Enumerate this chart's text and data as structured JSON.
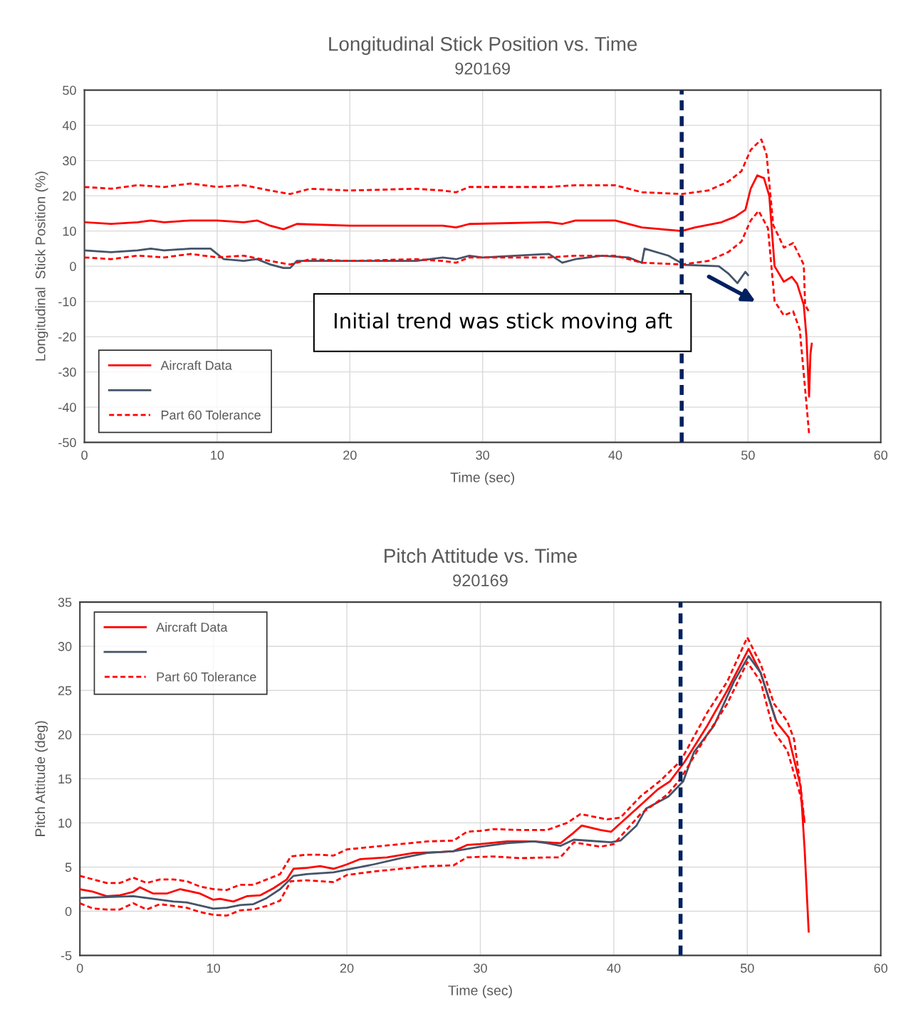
{
  "chart_data": [
    {
      "type": "line",
      "title": "Longitudinal Stick Position vs. Time",
      "subtitle": "920169",
      "xlabel": "Time (sec)",
      "ylabel": "Longitudinal  Stick Position (%)",
      "xlim": [
        0,
        60
      ],
      "xticks": [
        0,
        10,
        20,
        30,
        40,
        50,
        60
      ],
      "ylim": [
        -50,
        50
      ],
      "yticks": [
        -50,
        -40,
        -30,
        -20,
        -10,
        0,
        10,
        20,
        30,
        40,
        50
      ],
      "grid": true,
      "legend": "bottom left",
      "annotations": [
        "Initial trend was stick moving aft"
      ],
      "ref_lines": [
        {
          "axis": "x",
          "value": 45,
          "color": "#002060",
          "line_style": "dashed"
        }
      ],
      "series": [
        {
          "name": "Aircraft Data",
          "color": "#ff0000",
          "line_style": "solid",
          "x": [
            0,
            2,
            4,
            5,
            6,
            8,
            10,
            12,
            13,
            14,
            15,
            16,
            20,
            25,
            27,
            28,
            29,
            35,
            36,
            37,
            40,
            42,
            45,
            46,
            48,
            49,
            49.8,
            50.2,
            50.7,
            51.2,
            51.6,
            52.0,
            52.7,
            53.3,
            53.7,
            54.2,
            54.4,
            54.6,
            54.7,
            54.8
          ],
          "values": [
            12.5,
            12,
            12.5,
            13,
            12.5,
            13,
            13,
            12.5,
            13,
            11.5,
            10.5,
            12,
            11.5,
            11.5,
            11.5,
            11,
            12,
            12.5,
            12,
            13,
            13,
            11,
            10,
            11,
            12.5,
            14,
            16,
            22,
            25.8,
            25,
            20,
            0,
            -4.4,
            -3,
            -5,
            -11,
            -20,
            -37,
            -25,
            -22
          ]
        },
        {
          "color": "#44546a",
          "line_style": "solid",
          "x": [
            0,
            2,
            4,
            5,
            6,
            8,
            9.5,
            10,
            10.5,
            12,
            13,
            14,
            15,
            15.5,
            16,
            20,
            25,
            27,
            28,
            29,
            30,
            35,
            36,
            37,
            39,
            41,
            42,
            42.2,
            44,
            45.2,
            47.8,
            48.5,
            49.2,
            49.8,
            50
          ],
          "values": [
            4.5,
            4,
            4.5,
            5,
            4.5,
            5,
            5,
            3.5,
            2,
            1.5,
            2,
            0.5,
            -0.5,
            -0.5,
            1.5,
            1.5,
            1.5,
            2.5,
            2,
            3,
            2.5,
            3.5,
            1,
            2,
            3,
            2.5,
            1,
            5,
            3,
            0.4,
            0,
            -2,
            -4.8,
            -1.6,
            -2.5
          ]
        },
        {
          "name": "Part 60 Tolerance",
          "color": "#ff0000",
          "line_style": "dashed",
          "x": [
            0,
            2,
            4,
            6,
            8,
            10,
            12,
            14,
            15.5,
            17,
            20,
            25,
            27,
            28,
            29,
            35,
            37,
            40,
            42,
            45,
            47,
            48.5,
            49.5,
            50.2,
            51,
            51.4,
            51.9,
            52.7,
            53.4,
            54.2,
            54.3,
            54.6
          ],
          "values": [
            22.5,
            22,
            23,
            22.5,
            23.5,
            22.5,
            23,
            21.5,
            20.5,
            22,
            21.5,
            22,
            21.5,
            21,
            22.5,
            22.5,
            23,
            23,
            21,
            20.5,
            21.5,
            24,
            27,
            33,
            36,
            31.6,
            11.7,
            5.3,
            6.6,
            0.4,
            -11,
            -13
          ]
        },
        {
          "color": "#ff0000",
          "line_style": "dashed",
          "x": [
            0,
            2,
            4,
            6,
            8,
            10,
            12,
            14,
            15.5,
            17,
            20,
            25,
            27,
            28,
            29,
            35,
            37,
            40,
            42,
            45,
            47,
            48.5,
            49.5,
            50.2,
            50.8,
            51.5,
            51.8,
            52.0,
            52.7,
            53.4,
            53.9,
            54.4,
            54.6
          ],
          "values": [
            2.5,
            2,
            3,
            2.5,
            3.5,
            2.5,
            3,
            1.5,
            0.5,
            2,
            1.5,
            2,
            1.5,
            1,
            2.5,
            2.5,
            3,
            3,
            1,
            0.5,
            1.5,
            4,
            7,
            13,
            15.7,
            10.8,
            -1.6,
            -9.9,
            -14,
            -12.8,
            -18,
            -39,
            -47.6
          ]
        }
      ]
    },
    {
      "type": "line",
      "title": "Pitch Attitude vs. Time",
      "subtitle": "920169",
      "xlabel": "Time (sec)",
      "ylabel": "Pitch Attitude (deg)",
      "xlim": [
        0,
        60
      ],
      "xticks": [
        0,
        10,
        20,
        30,
        40,
        50,
        60
      ],
      "ylim": [
        -5,
        35
      ],
      "yticks": [
        -5,
        0,
        5,
        10,
        15,
        20,
        25,
        30,
        35
      ],
      "grid": true,
      "legend": "top left",
      "ref_lines": [
        {
          "axis": "x",
          "value": 45,
          "color": "#002060",
          "line_style": "dashed"
        }
      ],
      "series": [
        {
          "name": "Aircraft Data",
          "color": "#ff0000",
          "line_style": "solid",
          "x": [
            0,
            1,
            2,
            3,
            4,
            4.5,
            5.5,
            6.5,
            7.5,
            9,
            10,
            10.5,
            11.5,
            12.5,
            13.5,
            14.5,
            15.5,
            16,
            17,
            18,
            19,
            20,
            21,
            23,
            25,
            27,
            28,
            29,
            30,
            32,
            34,
            36,
            37,
            37.6,
            39,
            39.8,
            42,
            43.3,
            44.2,
            45.3,
            47,
            48.5,
            50.1,
            51,
            52.2,
            53.1,
            54.0,
            54.3,
            54.6
          ],
          "values": [
            2.5,
            2.2,
            1.7,
            1.8,
            2.2,
            2.7,
            2,
            2,
            2.5,
            2,
            1.3,
            1.4,
            1.1,
            1.7,
            1.8,
            2.6,
            3.6,
            4.8,
            4.9,
            5.1,
            4.8,
            5.3,
            5.9,
            6.1,
            6.6,
            6.7,
            6.8,
            7.5,
            7.6,
            7.9,
            7.9,
            7.7,
            8.9,
            9.7,
            9.2,
            9,
            12,
            13.8,
            14.7,
            16.9,
            21,
            25,
            29.7,
            27,
            21.4,
            19.7,
            14.1,
            6.9,
            -2.3
          ]
        },
        {
          "color": "#44546a",
          "line_style": "solid",
          "x": [
            0,
            2,
            4,
            5,
            7,
            8,
            10,
            11,
            12,
            13,
            14,
            15,
            16,
            17,
            19,
            20,
            22,
            24,
            26,
            28,
            30,
            32,
            34,
            35,
            36,
            37,
            38,
            39.8,
            40.5,
            41.7,
            42.4,
            44.1,
            45.2,
            46,
            47.5,
            49,
            50.1,
            51,
            52.1
          ],
          "values": [
            1.5,
            1.6,
            1.7,
            1.5,
            1.1,
            1.0,
            0.3,
            0.4,
            0.7,
            0.8,
            1.5,
            2.5,
            4,
            4.2,
            4.4,
            4.7,
            5.3,
            6.0,
            6.6,
            6.8,
            7.3,
            7.7,
            7.9,
            7.7,
            7.4,
            8.1,
            8.0,
            7.8,
            8.0,
            9.7,
            11.6,
            13,
            14.7,
            18,
            21,
            26,
            28.9,
            27,
            21.8
          ]
        },
        {
          "name": "Part 60 Tolerance",
          "color": "#ff0000",
          "line_style": "dashed",
          "x": [
            0,
            1,
            2,
            3,
            4,
            5,
            6,
            7,
            8,
            9,
            10,
            11,
            12,
            13,
            14,
            15,
            15.8,
            17,
            18,
            19,
            20,
            22,
            24,
            26,
            28,
            29,
            30,
            31,
            33,
            35,
            36.5,
            37.5,
            39.5,
            40.5,
            42,
            43.5,
            45,
            47,
            48.5,
            50,
            51,
            52,
            53,
            53.5,
            54,
            54.3
          ],
          "values": [
            4,
            3.6,
            3.2,
            3.2,
            3.8,
            3.2,
            3.6,
            3.6,
            3.4,
            2.8,
            2.5,
            2.4,
            3.0,
            3.0,
            3.6,
            4.2,
            6.2,
            6.4,
            6.4,
            6.3,
            7,
            7.3,
            7.6,
            7.9,
            8,
            9,
            9.1,
            9.3,
            9.2,
            9.2,
            10,
            11,
            10.4,
            10.6,
            13,
            14.8,
            17,
            22.5,
            26,
            31,
            28,
            23.5,
            21.5,
            19.5,
            14,
            10
          ]
        },
        {
          "color": "#ff0000",
          "line_style": "dashed",
          "x": [
            0,
            1,
            2,
            3,
            4,
            5,
            6,
            7,
            8,
            9,
            10,
            11,
            12,
            13,
            14,
            15,
            15.8,
            17,
            19,
            20,
            22,
            24,
            26,
            28,
            29,
            31,
            33,
            35,
            36,
            37,
            39,
            40,
            42,
            44,
            45,
            47,
            48.5,
            50,
            51,
            52,
            53,
            54,
            54.3
          ],
          "values": [
            0.9,
            0.3,
            0.2,
            0.2,
            0.9,
            0.2,
            0.8,
            0.6,
            0.4,
            -0.1,
            -0.4,
            -0.5,
            0.1,
            0.2,
            0.6,
            1.2,
            3.4,
            3.5,
            3.3,
            4.1,
            4.5,
            4.8,
            5.1,
            5.2,
            6.1,
            6.2,
            6,
            6.1,
            6.1,
            7.8,
            7.3,
            7.6,
            11,
            13.2,
            15,
            20,
            23.5,
            28.2,
            26,
            20.3,
            18.2,
            13,
            10
          ]
        }
      ]
    }
  ]
}
